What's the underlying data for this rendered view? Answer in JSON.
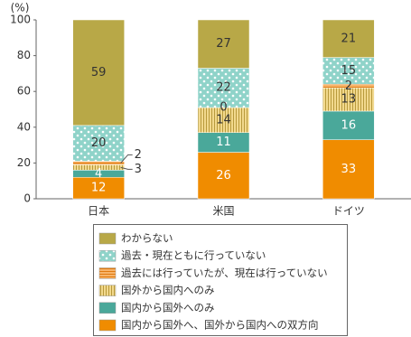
{
  "chart_data": {
    "type": "stacked-bar",
    "y_unit": "(%)",
    "categories": [
      "日本",
      "米国",
      "ドイツ"
    ],
    "series": [
      {
        "name": "国内から国外へ、国外から国内への双方向",
        "color": "#f08c00",
        "pattern": "solid",
        "label_color": "#ffffff",
        "values": [
          12,
          26,
          33
        ]
      },
      {
        "name": "国内から国外へのみ",
        "color": "#4aa89a",
        "pattern": "solid",
        "label_color": "#ffffff",
        "values": [
          4,
          11,
          16
        ]
      },
      {
        "name": "国外から国内へのみ",
        "color": "#f2d98e",
        "pattern": "vertical-stripes",
        "label_color": "#333333",
        "values": [
          3,
          14,
          13
        ]
      },
      {
        "name": "過去には行っていたが、現在は行っていない",
        "color": "#f7b46a",
        "pattern": "horizontal-stripes",
        "label_color": "#333333",
        "values": [
          2,
          0,
          2
        ]
      },
      {
        "name": "過去・現在ともに行っていない",
        "color": "#8fd3c9",
        "pattern": "dots",
        "label_color": "#333333",
        "values": [
          20,
          22,
          15
        ]
      },
      {
        "name": "わからない",
        "color": "#b8a847",
        "pattern": "solid",
        "label_color": "#333333",
        "values": [
          59,
          27,
          21
        ]
      }
    ],
    "ylim": [
      0,
      100
    ],
    "yticks": [
      0,
      20,
      40,
      60,
      80,
      100
    ],
    "grid": false
  }
}
